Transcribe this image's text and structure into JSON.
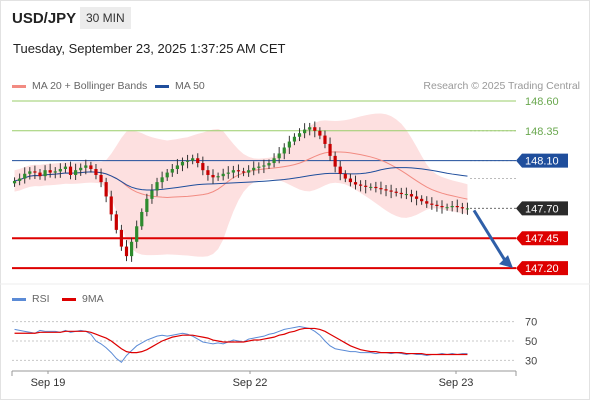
{
  "header": {
    "symbol": "USD/JPY",
    "interval": "30 MIN"
  },
  "timestamp": "Tuesday, September 23, 2025 1:37:25 AM CET",
  "legend": {
    "items": [
      {
        "label": "MA 20 + Bollinger Bands",
        "color": "#f28b82"
      },
      {
        "label": "MA 50",
        "color": "#1f4e9c"
      }
    ],
    "credit": "Research © 2025 Trading Central"
  },
  "rsi_legend": {
    "items": [
      {
        "label": "RSI",
        "color": "#5b8bd6"
      },
      {
        "label": "9MA",
        "color": "#dd0000"
      }
    ]
  },
  "colors": {
    "up": "#2e8b2e",
    "down": "#c80000",
    "resistance": "#9acd6a",
    "pivot": "#1f4e9c",
    "support": "#dd0000",
    "arrow": "#2f5fa8",
    "bands": "#fde0e0"
  },
  "chart_data": [
    {
      "type": "candlestick",
      "x_ticks": [
        "Sep 19",
        "Sep 22",
        "Sep 23"
      ],
      "ylim": [
        147.1,
        148.65
      ],
      "levels": [
        {
          "label": "148.60",
          "value": 148.6,
          "kind": "resistance"
        },
        {
          "label": "148.35",
          "value": 148.35,
          "kind": "resistance"
        },
        {
          "label": "148.10",
          "value": 148.1,
          "kind": "pivot"
        },
        {
          "label": "147.70",
          "value": 147.7,
          "kind": "last"
        },
        {
          "label": "147.45",
          "value": 147.45,
          "kind": "support"
        },
        {
          "label": "147.20",
          "value": 147.2,
          "kind": "support"
        }
      ],
      "closes": [
        147.93,
        147.95,
        147.99,
        148.01,
        148.0,
        147.97,
        148.02,
        148.0,
        148.01,
        148.03,
        148.05,
        147.98,
        148.02,
        148.04,
        148.06,
        148.03,
        147.98,
        147.92,
        147.8,
        147.65,
        147.52,
        147.38,
        147.3,
        147.42,
        147.55,
        147.67,
        147.78,
        147.85,
        147.92,
        147.96,
        148.0,
        148.03,
        148.06,
        148.09,
        148.1,
        148.12,
        148.08,
        148.02,
        147.98,
        147.96,
        147.97,
        147.99,
        148.0,
        148.02,
        148.01,
        148.0,
        148.02,
        148.04,
        148.05,
        148.06,
        148.08,
        148.12,
        148.16,
        148.21,
        148.26,
        148.3,
        148.33,
        148.36,
        148.38,
        148.35,
        148.31,
        148.24,
        148.14,
        148.05,
        147.99,
        147.95,
        147.92,
        147.9,
        147.89,
        147.88,
        147.88,
        147.87,
        147.86,
        147.85,
        147.84,
        147.83,
        147.82,
        147.82,
        147.8,
        147.78,
        147.76,
        147.74,
        147.73,
        147.72,
        147.71,
        147.71,
        147.72,
        147.71,
        147.7,
        147.7
      ],
      "rsi": {
        "ylim": [
          20,
          80
        ],
        "ticks": [
          70,
          50,
          30
        ],
        "rsi_values": [
          62,
          61,
          60,
          59,
          58,
          61,
          60,
          60,
          60,
          59,
          61,
          59,
          60,
          61,
          60,
          57,
          50,
          47,
          43,
          38,
          32,
          28,
          35,
          40,
          45,
          48,
          51,
          53,
          55,
          56,
          55,
          56,
          57,
          58,
          57,
          55,
          52,
          49,
          48,
          47,
          48,
          47,
          49,
          51,
          50,
          49,
          52,
          53,
          54,
          55,
          57,
          58,
          60,
          62,
          63,
          64,
          65,
          64,
          63,
          60,
          56,
          50,
          45,
          42,
          41,
          40,
          39,
          39,
          38,
          38,
          38,
          37,
          38,
          38,
          37,
          38,
          37,
          36,
          37,
          36,
          36,
          35,
          36,
          36,
          37,
          36,
          37,
          36,
          37,
          37
        ],
        "ma_values": [
          58,
          58,
          58,
          58,
          58,
          59,
          59,
          59,
          59,
          59,
          60,
          60,
          60,
          60,
          60,
          59,
          57,
          55,
          53,
          50,
          46,
          42,
          39,
          38,
          38,
          39,
          41,
          44,
          47,
          50,
          52,
          54,
          55,
          56,
          56,
          56,
          55,
          54,
          53,
          51,
          50,
          49,
          49,
          49,
          49,
          49,
          50,
          51,
          51,
          52,
          53,
          54,
          56,
          57,
          59,
          60,
          62,
          63,
          63,
          63,
          62,
          60,
          57,
          54,
          51,
          48,
          45,
          43,
          41,
          40,
          39,
          39,
          38,
          38,
          38,
          38,
          38,
          37,
          37,
          37,
          37,
          36,
          36,
          36,
          36,
          36,
          36,
          36,
          36,
          36
        ]
      }
    }
  ]
}
